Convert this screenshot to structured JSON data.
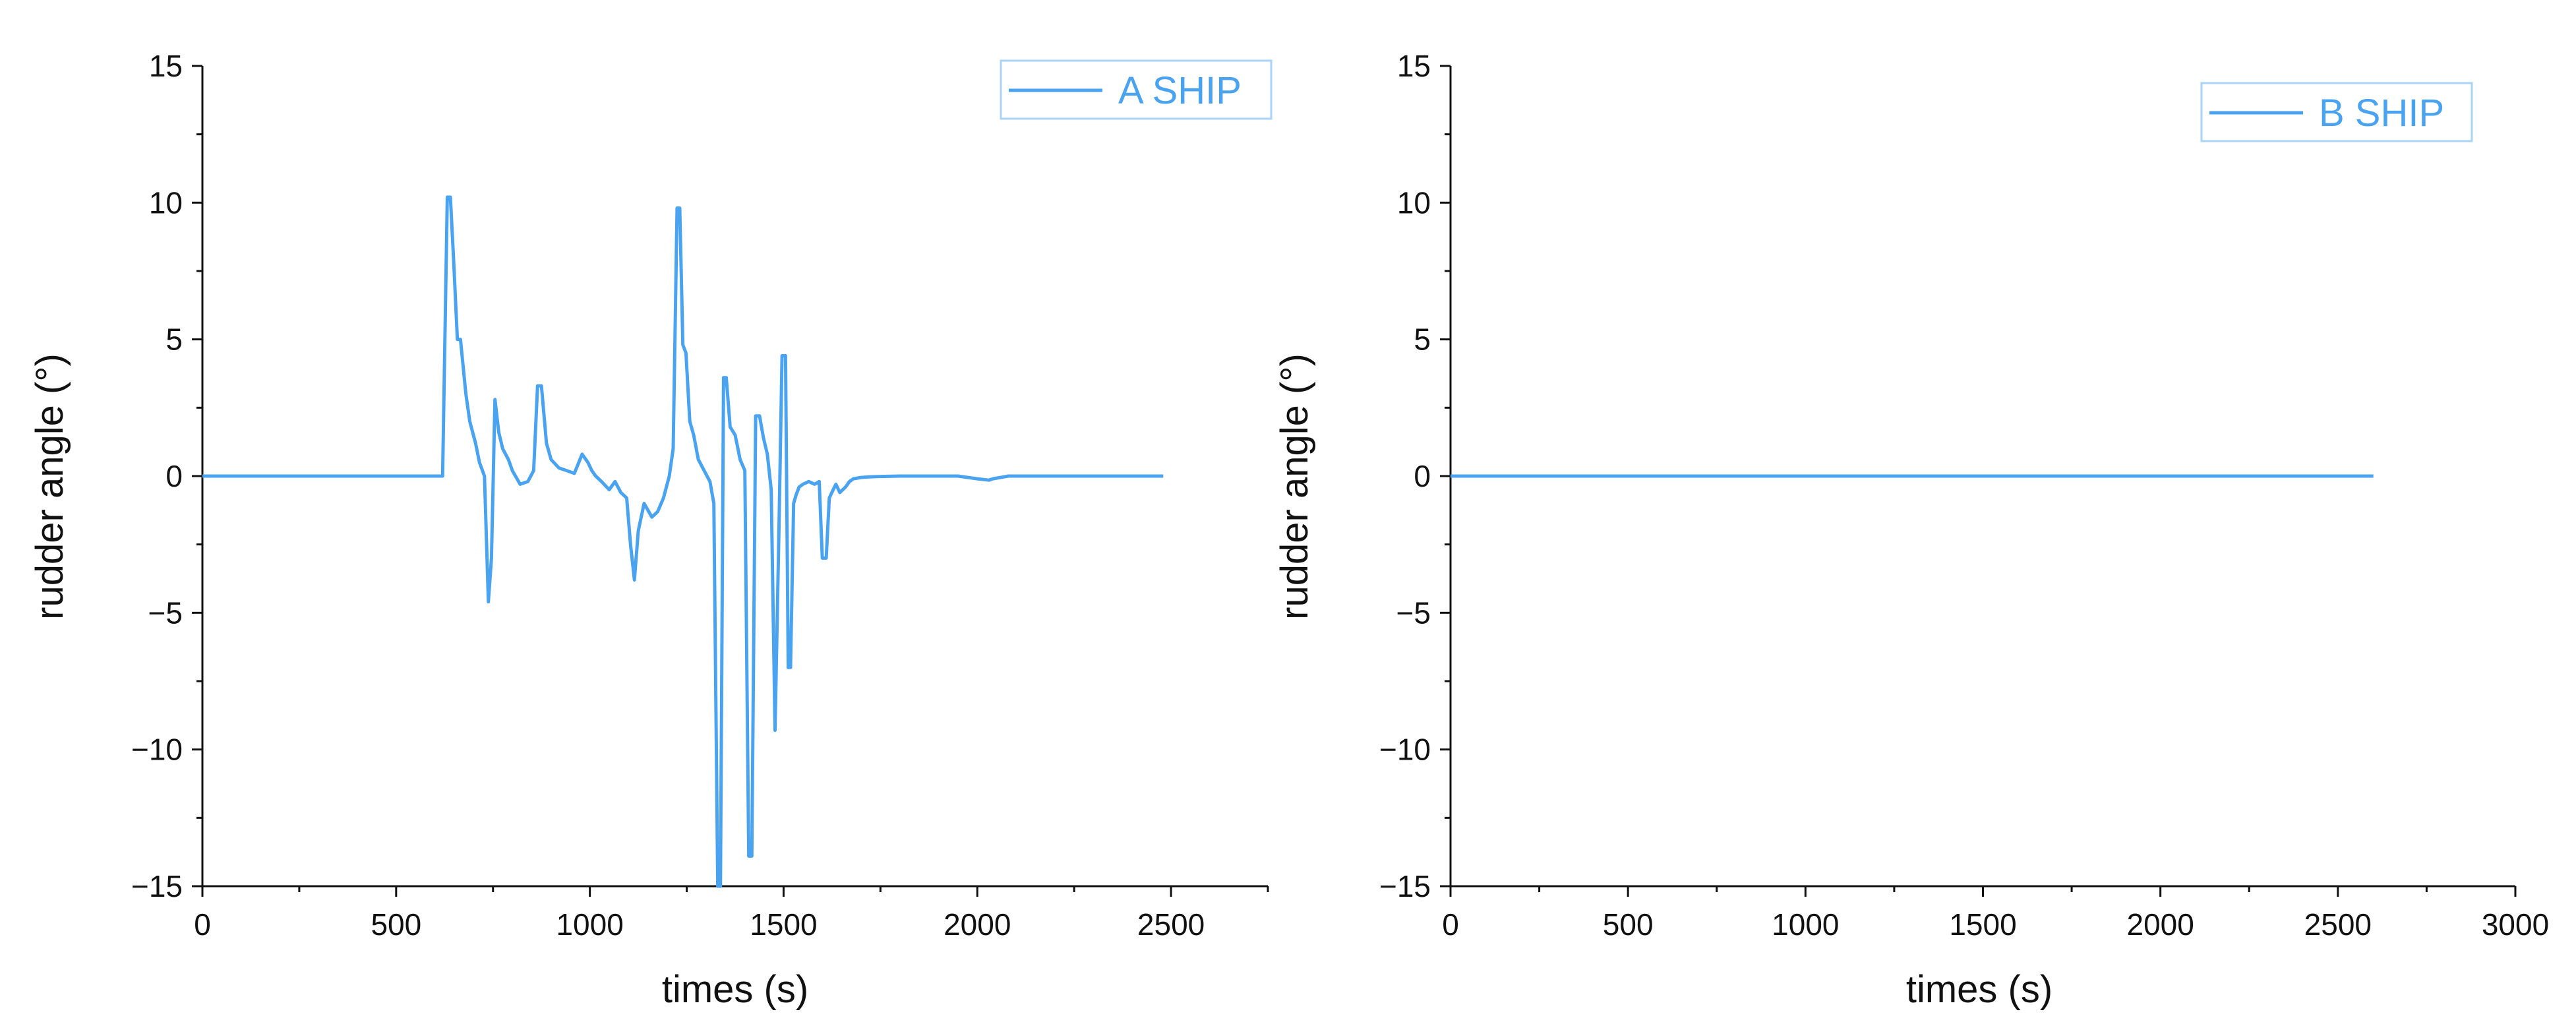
{
  "chart_data": [
    {
      "type": "line",
      "xlabel": "times (s)",
      "ylabel": "rudder angle (°)",
      "xlim": [
        0,
        2750
      ],
      "ylim": [
        -15,
        15
      ],
      "xticks": [
        "0",
        "500",
        "1000",
        "1500",
        "2000",
        "2500"
      ],
      "yticks": [
        "15",
        "10",
        "5",
        "0",
        "−5",
        "−10",
        "−15"
      ],
      "legend_position": "top-right",
      "series": [
        {
          "name": "A SHIP",
          "color": "#4aa3f0",
          "x": [
            0,
            610,
            620,
            632,
            640,
            648,
            658,
            666,
            680,
            690,
            705,
            715,
            728,
            738,
            746,
            755,
            765,
            775,
            790,
            800,
            820,
            840,
            855,
            865,
            875,
            888,
            900,
            920,
            940,
            960,
            980,
            995,
            1005,
            1015,
            1030,
            1050,
            1065,
            1080,
            1095,
            1105,
            1115,
            1125,
            1140,
            1160,
            1175,
            1190,
            1205,
            1215,
            1225,
            1232,
            1240,
            1248,
            1258,
            1268,
            1280,
            1295,
            1310,
            1320,
            1330,
            1337,
            1345,
            1352,
            1362,
            1375,
            1388,
            1400,
            1410,
            1418,
            1428,
            1438,
            1448,
            1458,
            1468,
            1478,
            1488,
            1496,
            1505,
            1512,
            1518,
            1526,
            1532,
            1540,
            1550,
            1565,
            1580,
            1592,
            1600,
            1610,
            1618,
            1628,
            1635,
            1645,
            1660,
            1670,
            1680,
            1700,
            1720,
            1740,
            1770,
            1800,
            1850,
            1950,
            2000,
            2030,
            2040,
            2060,
            2080,
            2100,
            2200,
            2300,
            2400,
            2480
          ],
          "values": [
            0,
            0,
            0,
            10.2,
            10.2,
            8.0,
            5.0,
            5.0,
            3.0,
            2.0,
            1.2,
            0.5,
            0.0,
            -4.6,
            -3.0,
            2.8,
            1.6,
            1.0,
            0.6,
            0.2,
            -0.3,
            -0.2,
            0.2,
            3.3,
            3.3,
            1.2,
            0.6,
            0.3,
            0.2,
            0.1,
            0.8,
            0.5,
            0.2,
            0.0,
            -0.2,
            -0.5,
            -0.2,
            -0.6,
            -0.8,
            -2.5,
            -3.8,
            -2.0,
            -1.0,
            -1.5,
            -1.3,
            -0.8,
            0.0,
            1.0,
            9.8,
            9.8,
            4.8,
            4.5,
            2.0,
            1.5,
            0.6,
            0.2,
            -0.2,
            -1.0,
            -15.0,
            -15.0,
            3.6,
            3.6,
            1.8,
            1.5,
            0.6,
            0.2,
            -13.9,
            -13.9,
            2.2,
            2.2,
            1.4,
            0.8,
            -0.5,
            -9.3,
            -2.0,
            4.4,
            4.4,
            -7.0,
            -7.0,
            -1.0,
            -0.7,
            -0.4,
            -0.3,
            -0.2,
            -0.3,
            -0.2,
            -3.0,
            -3.0,
            -0.8,
            -0.5,
            -0.3,
            -0.6,
            -0.4,
            -0.2,
            -0.1,
            -0.05,
            -0.03,
            -0.02,
            -0.01,
            0,
            0,
            0,
            -0.1,
            -0.15,
            -0.1,
            -0.05,
            0,
            0,
            0,
            0,
            0,
            0
          ]
        }
      ]
    },
    {
      "type": "line",
      "xlabel": "times (s)",
      "ylabel": "rudder angle (°)",
      "xlim": [
        0,
        3000
      ],
      "ylim": [
        -15,
        15
      ],
      "xticks": [
        "0",
        "500",
        "1000",
        "1500",
        "2000",
        "2500",
        "3000"
      ],
      "yticks": [
        "15",
        "10",
        "5",
        "0",
        "−5",
        "−10",
        "−15"
      ],
      "legend_position": "top-right",
      "series": [
        {
          "name": "B SHIP",
          "color": "#4aa3f0",
          "x": [
            0,
            500,
            1000,
            1500,
            2000,
            2500,
            2600
          ],
          "values": [
            0,
            0,
            0,
            0,
            0,
            0,
            0
          ]
        }
      ]
    }
  ]
}
